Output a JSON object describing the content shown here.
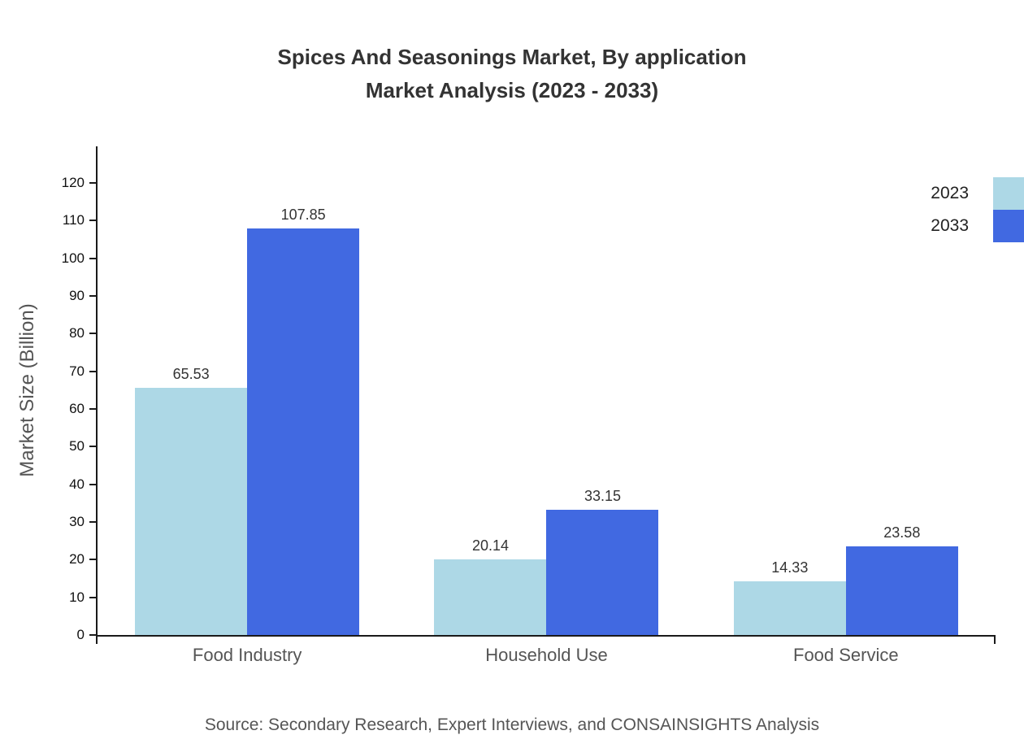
{
  "chart_data": {
    "type": "bar",
    "title_line1": "Spices And Seasonings Market, By application",
    "title_line2": "Market Analysis (2023 - 2033)",
    "categories": [
      "Food Industry",
      "Household Use",
      "Food Service"
    ],
    "series": [
      {
        "name": "2023",
        "color": "#add8e6",
        "values": [
          65.53,
          20.14,
          14.33
        ]
      },
      {
        "name": "2033",
        "color": "#4169e1",
        "values": [
          107.85,
          33.15,
          23.58
        ]
      }
    ],
    "xlabel": "",
    "ylabel": "Market Size (Billion)",
    "ylim": [
      0,
      120
    ],
    "ytick_step": 10,
    "grid": false,
    "legend_position": "top-right",
    "source": "Source: Secondary Research, Expert Interviews, and CONSAINSIGHTS Analysis"
  }
}
